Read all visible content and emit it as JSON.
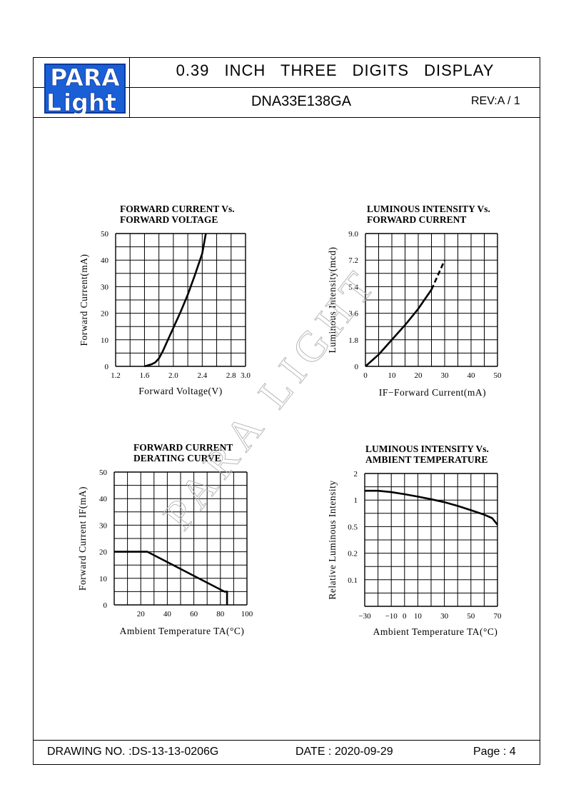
{
  "header": {
    "logo_top": "PARA",
    "logo_bottom": "ight",
    "logo_l": "L",
    "title": "0.39 INCH THREE DIGITS DISPLAY",
    "model": "DNA33E138GA",
    "rev": "REV:A / 1"
  },
  "footer": {
    "drawing_no": "DRAWING NO. :DS-13-13-0206G",
    "date": "DATE : 2020-09-29",
    "page": "Page : 4"
  },
  "watermark": "PARA LIGHT",
  "chart_data": [
    {
      "id": "fwd_current_vs_voltage",
      "type": "line",
      "title": [
        "FORWARD CURRENT Vs.",
        "FORWARD VOLTAGE"
      ],
      "xlabel": "Forward Voltage(V)",
      "ylabel": "Forward Current(mA)",
      "xlim": [
        1.2,
        3.0
      ],
      "ylim": [
        0,
        50
      ],
      "xticks": [
        "1.2",
        "1.6",
        "2.0",
        "2.4",
        "2.8",
        "3.0"
      ],
      "yticks": [
        "0",
        "10",
        "20",
        "30",
        "40",
        "50"
      ],
      "grid": true,
      "series": [
        {
          "x": [
            1.6,
            1.7,
            1.75,
            1.8,
            1.85,
            1.9,
            2.0,
            2.1,
            2.2,
            2.3,
            2.4,
            2.45
          ],
          "y": [
            0,
            0.8,
            1.5,
            3,
            5.5,
            8.5,
            14.5,
            20.5,
            27,
            34.5,
            42.5,
            50
          ],
          "dashed_from_index": null
        }
      ]
    },
    {
      "id": "luminous_vs_current",
      "type": "line",
      "title": [
        "LUMINOUS INTENSITY Vs.",
        "FORWARD CURRENT"
      ],
      "xlabel": "IF−Forward Current(mA)",
      "ylabel": "Luminous Intensity(mcd)",
      "xlim": [
        0,
        50
      ],
      "ylim": [
        0,
        9.0
      ],
      "xticks": [
        "0",
        "10",
        "20",
        "30",
        "40",
        "50"
      ],
      "yticks": [
        "0",
        "1.8",
        "3.6",
        "5.4",
        "7.2",
        "9.0"
      ],
      "grid": true,
      "series": [
        {
          "x": [
            0,
            5,
            10,
            15,
            20,
            25,
            26,
            28,
            30
          ],
          "y": [
            0,
            0.8,
            1.8,
            2.8,
            3.9,
            5.2,
            5.6,
            6.4,
            7.2
          ],
          "dashed_from_index": 5
        }
      ]
    },
    {
      "id": "derating_curve",
      "type": "line",
      "title": [
        "FORWARD CURRENT",
        "DERATING CURVE"
      ],
      "xlabel": "Ambient Temperature TA(°C)",
      "ylabel": "Forward Current IF(mA)",
      "xlim": [
        0,
        100
      ],
      "ylim": [
        0,
        50
      ],
      "xticks": [
        "",
        "20",
        "40",
        "60",
        "80",
        "100"
      ],
      "yticks": [
        "0",
        "10",
        "20",
        "30",
        "40",
        "50"
      ],
      "grid": true,
      "series": [
        {
          "x": [
            0,
            25,
            83,
            85,
            85
          ],
          "y": [
            20,
            20,
            5,
            5,
            0
          ],
          "dashed_from_index": null
        }
      ]
    },
    {
      "id": "luminous_vs_temperature",
      "type": "line",
      "title": [
        "LUMINOUS INTENSITY Vs.",
        "AMBIENT TEMPERATURE"
      ],
      "xlabel": "Ambient Temperature TA(°C)",
      "ylabel": "Relative Luminous Intensity",
      "xlim": [
        -30,
        70
      ],
      "ylim": [
        0,
        5
      ],
      "xticks": [
        "−30",
        "−10",
        "0",
        "10",
        "30",
        "50",
        "70"
      ],
      "xtick_pos": [
        0,
        2,
        3,
        4,
        6,
        8,
        10
      ],
      "yticks": [
        "",
        "0.1",
        "0.2",
        "0.5",
        "1",
        "2"
      ],
      "grid": true,
      "series": [
        {
          "x": [
            -30,
            -20,
            -10,
            0,
            10,
            20,
            30,
            40,
            50,
            60,
            66,
            70
          ],
          "y": [
            4.35,
            4.35,
            4.3,
            4.22,
            4.13,
            4.03,
            3.92,
            3.78,
            3.62,
            3.45,
            3.32,
            3.07
          ],
          "dashed_from_index": null
        }
      ]
    }
  ]
}
